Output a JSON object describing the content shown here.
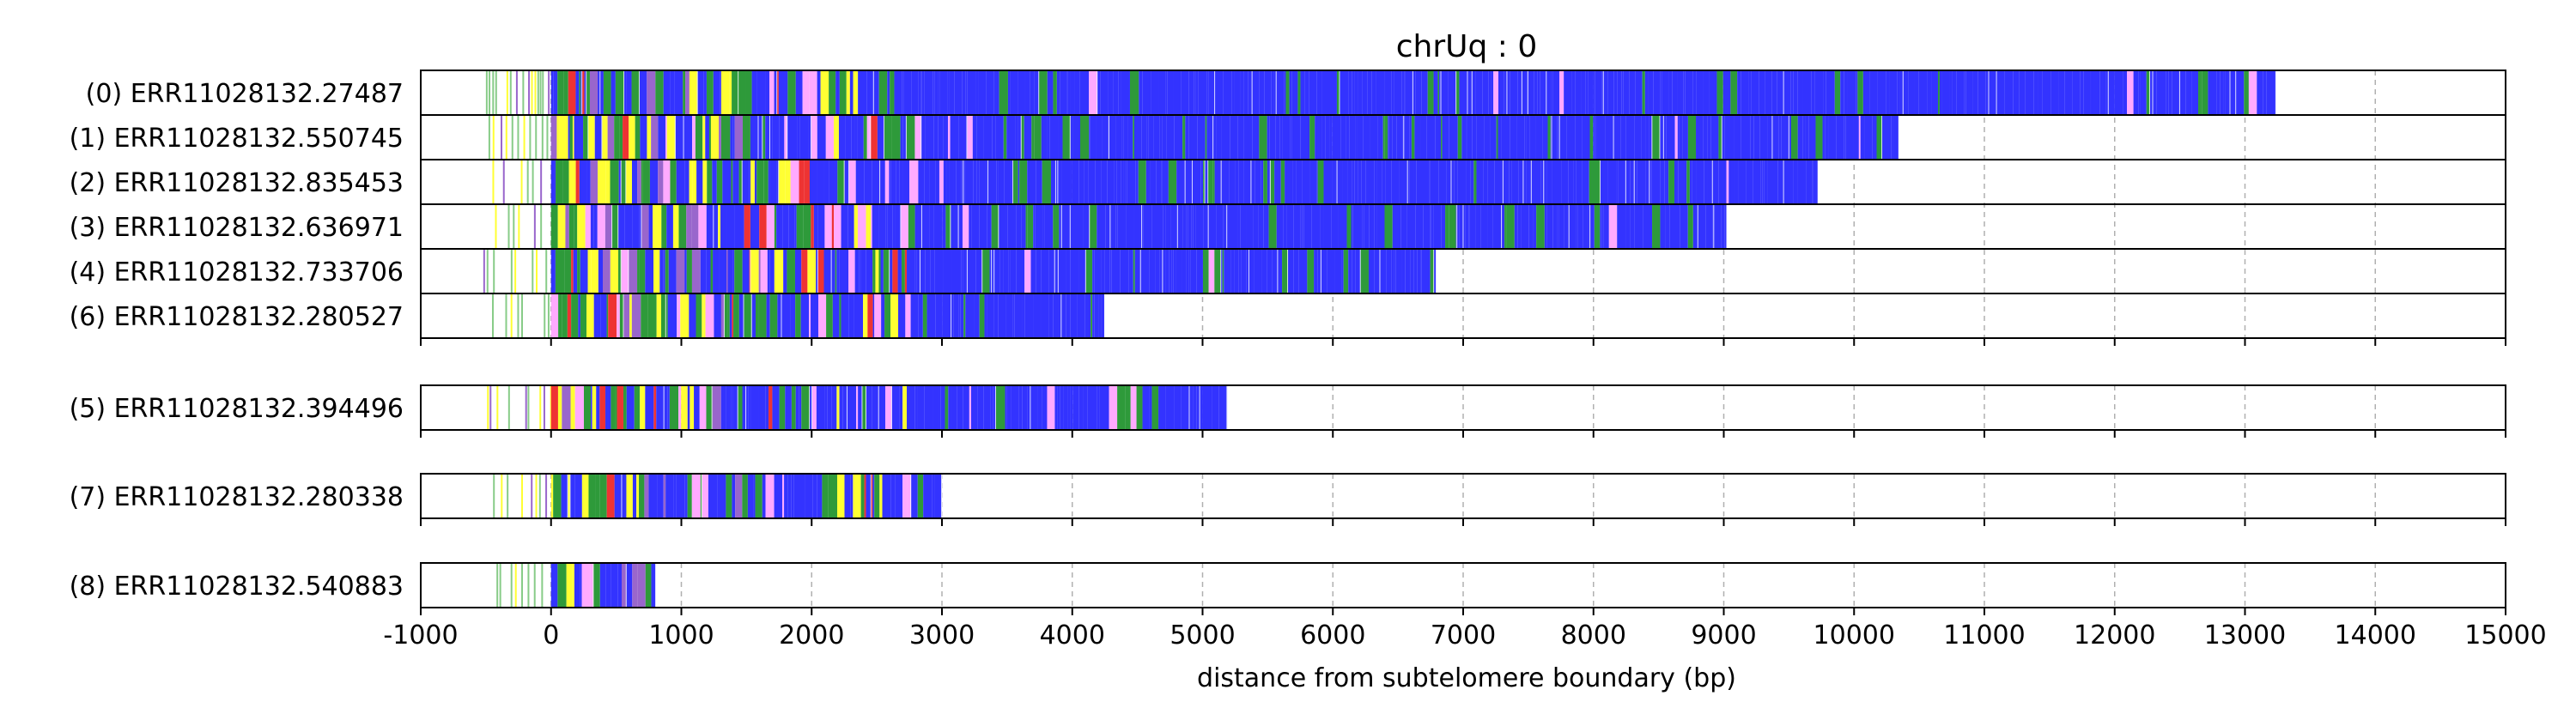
{
  "chart_data": {
    "type": "bar",
    "title": "chrUq : 0",
    "xlabel": "distance from subtelomere boundary (bp)",
    "ylabel": "",
    "xlim": [
      -1000,
      15000
    ],
    "xticks": [
      -1000,
      0,
      1000,
      2000,
      3000,
      4000,
      5000,
      6000,
      7000,
      8000,
      9000,
      10000,
      11000,
      12000,
      13000,
      14000,
      15000
    ],
    "xtick_labels": [
      "-1000",
      "0",
      "1000",
      "2000",
      "3000",
      "4000",
      "5000",
      "6000",
      "7000",
      "8000",
      "9000",
      "10000",
      "11000",
      "12000",
      "13000",
      "14000",
      "15000"
    ],
    "grid": "vertical dashed",
    "colors": {
      "blue": "#3333ff",
      "green": "#2e9a3a",
      "red": "#ee3333",
      "yellow": "#ffff33",
      "pink": "#ffaaff",
      "purple": "#9966cc",
      "lightgreen": "#88cc88"
    },
    "panels": [
      {
        "reads": [
          {
            "label": "(0) ERR11028132.27487",
            "start": -500,
            "end": 13230
          },
          {
            "label": "(1) ERR11028132.550745",
            "start": -480,
            "end": 10340
          },
          {
            "label": "(2) ERR11028132.835453",
            "start": -450,
            "end": 9720
          },
          {
            "label": "(3) ERR11028132.636971",
            "start": -430,
            "end": 9020
          },
          {
            "label": "(4) ERR11028132.733706",
            "start": -520,
            "end": 6790
          },
          {
            "label": "(6) ERR11028132.280527",
            "start": -490,
            "end": 4240
          }
        ]
      },
      {
        "reads": [
          {
            "label": "(5) ERR11028132.394496",
            "start": -540,
            "end": 5190
          }
        ]
      },
      {
        "reads": [
          {
            "label": "(7) ERR11028132.280338",
            "start": -490,
            "end": 3000
          }
        ]
      },
      {
        "reads": [
          {
            "label": "(8) ERR11028132.540883",
            "start": -480,
            "end": 800
          }
        ]
      }
    ]
  }
}
